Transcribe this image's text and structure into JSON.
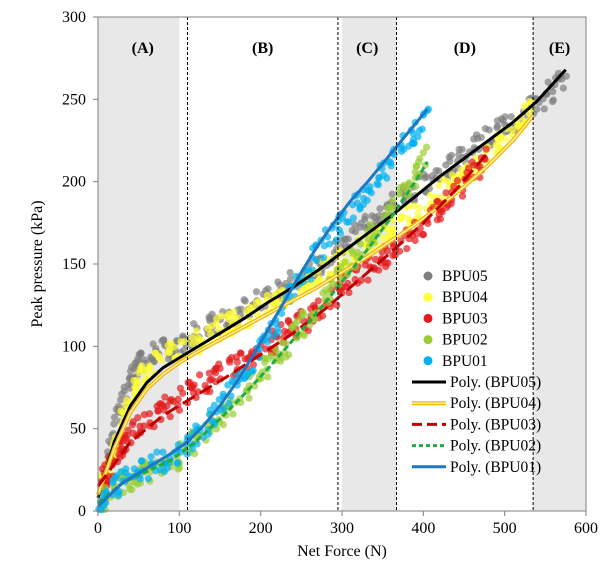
{
  "chart_data": {
    "type": "scatter",
    "xlabel": "Net Force (N)",
    "ylabel": "Peak pressure (kPa)",
    "xlim": [
      0,
      600
    ],
    "ylim": [
      0,
      300
    ],
    "x_ticks": [
      0,
      100,
      200,
      300,
      400,
      500,
      600
    ],
    "y_ticks": [
      0,
      50,
      100,
      150,
      200,
      250,
      300
    ],
    "grid": false,
    "legend_position": "right",
    "regions": [
      {
        "label": "(A)",
        "x_range": [
          0,
          110
        ],
        "shaded_x_range": [
          0,
          100
        ]
      },
      {
        "label": "(B)",
        "x_range": [
          110,
          295
        ]
      },
      {
        "label": "(C)",
        "x_range": [
          295,
          367
        ],
        "shaded_x_range": [
          300,
          367
        ]
      },
      {
        "label": "(D)",
        "x_range": [
          367,
          535
        ]
      },
      {
        "label": "(E)",
        "x_range": [
          535,
          600
        ],
        "shaded_x_range": [
          535,
          600
        ]
      }
    ],
    "divider_lines_x": [
      110,
      295,
      367,
      535
    ],
    "series": [
      {
        "name": "BPU05",
        "kind": "scatter",
        "color": "#7f7f7f",
        "points": [
          [
            5,
            12
          ],
          [
            10,
            25
          ],
          [
            20,
            50
          ],
          [
            30,
            68
          ],
          [
            40,
            80
          ],
          [
            50,
            88
          ],
          [
            60,
            93
          ],
          [
            75,
            97
          ],
          [
            90,
            99
          ],
          [
            105,
            101
          ],
          [
            120,
            107
          ],
          [
            140,
            112
          ],
          [
            160,
            117
          ],
          [
            180,
            122
          ],
          [
            200,
            128
          ],
          [
            220,
            133
          ],
          [
            240,
            139
          ],
          [
            260,
            145
          ],
          [
            280,
            152
          ],
          [
            300,
            160
          ],
          [
            320,
            168
          ],
          [
            340,
            176
          ],
          [
            360,
            184
          ],
          [
            380,
            192
          ],
          [
            400,
            200
          ],
          [
            420,
            206
          ],
          [
            440,
            213
          ],
          [
            460,
            220
          ],
          [
            480,
            227
          ],
          [
            500,
            234
          ],
          [
            520,
            240
          ],
          [
            540,
            247
          ],
          [
            560,
            256
          ],
          [
            575,
            265
          ]
        ]
      },
      {
        "name": "BPU04",
        "kind": "scatter",
        "color": "#ffff33",
        "points": [
          [
            5,
            15
          ],
          [
            10,
            22
          ],
          [
            20,
            40
          ],
          [
            30,
            55
          ],
          [
            40,
            68
          ],
          [
            50,
            78
          ],
          [
            60,
            85
          ],
          [
            80,
            93
          ],
          [
            100,
            98
          ],
          [
            120,
            102
          ],
          [
            140,
            108
          ],
          [
            160,
            113
          ],
          [
            180,
            118
          ],
          [
            200,
            123
          ],
          [
            220,
            128
          ],
          [
            240,
            134
          ],
          [
            260,
            140
          ],
          [
            280,
            146
          ],
          [
            300,
            152
          ],
          [
            320,
            158
          ],
          [
            340,
            165
          ],
          [
            360,
            171
          ],
          [
            380,
            178
          ],
          [
            400,
            185
          ],
          [
            420,
            192
          ],
          [
            440,
            200
          ],
          [
            460,
            208
          ],
          [
            480,
            217
          ],
          [
            500,
            226
          ],
          [
            520,
            236
          ],
          [
            535,
            246
          ]
        ]
      },
      {
        "name": "BPU03",
        "kind": "scatter",
        "color": "#e41a1c",
        "points": [
          [
            5,
            18
          ],
          [
            10,
            22
          ],
          [
            20,
            32
          ],
          [
            30,
            40
          ],
          [
            40,
            47
          ],
          [
            60,
            55
          ],
          [
            80,
            62
          ],
          [
            100,
            68
          ],
          [
            120,
            74
          ],
          [
            140,
            80
          ],
          [
            160,
            86
          ],
          [
            180,
            92
          ],
          [
            200,
            98
          ],
          [
            220,
            104
          ],
          [
            240,
            111
          ],
          [
            260,
            118
          ],
          [
            280,
            126
          ],
          [
            300,
            134
          ],
          [
            320,
            142
          ],
          [
            340,
            150
          ],
          [
            360,
            158
          ],
          [
            380,
            166
          ],
          [
            400,
            175
          ],
          [
            420,
            184
          ],
          [
            440,
            194
          ],
          [
            460,
            205
          ],
          [
            480,
            215
          ]
        ]
      },
      {
        "name": "BPU02",
        "kind": "scatter",
        "color": "#9acd32",
        "points": [
          [
            5,
            5
          ],
          [
            10,
            12
          ],
          [
            30,
            18
          ],
          [
            50,
            22
          ],
          [
            70,
            25
          ],
          [
            90,
            30
          ],
          [
            110,
            38
          ],
          [
            130,
            47
          ],
          [
            150,
            57
          ],
          [
            170,
            67
          ],
          [
            190,
            78
          ],
          [
            210,
            89
          ],
          [
            230,
            100
          ],
          [
            250,
            112
          ],
          [
            270,
            124
          ],
          [
            290,
            137
          ],
          [
            310,
            150
          ],
          [
            330,
            163
          ],
          [
            350,
            176
          ],
          [
            370,
            190
          ],
          [
            390,
            203
          ],
          [
            405,
            215
          ]
        ]
      },
      {
        "name": "BPU01",
        "kind": "scatter",
        "color": "#00b0f0",
        "points": [
          [
            2,
            3
          ],
          [
            10,
            10
          ],
          [
            30,
            18
          ],
          [
            50,
            23
          ],
          [
            70,
            28
          ],
          [
            90,
            33
          ],
          [
            110,
            40
          ],
          [
            130,
            50
          ],
          [
            150,
            62
          ],
          [
            170,
            76
          ],
          [
            190,
            92
          ],
          [
            210,
            108
          ],
          [
            230,
            124
          ],
          [
            250,
            140
          ],
          [
            270,
            156
          ],
          [
            290,
            170
          ],
          [
            310,
            182
          ],
          [
            330,
            194
          ],
          [
            350,
            206
          ],
          [
            370,
            218
          ],
          [
            390,
            230
          ],
          [
            405,
            240
          ]
        ]
      },
      {
        "name": "Poly. (BPU05)",
        "kind": "line",
        "color": "#000000",
        "dash": "solid",
        "x": [
          0,
          20,
          40,
          60,
          80,
          100,
          120,
          150,
          180,
          210,
          240,
          270,
          300,
          330,
          360,
          390,
          420,
          450,
          480,
          510,
          540,
          575
        ],
        "y": [
          8,
          42,
          64,
          78,
          87,
          93,
          99,
          108,
          117,
          127,
          136,
          146,
          157,
          168,
          179,
          191,
          203,
          214,
          225,
          236,
          249,
          268
        ]
      },
      {
        "name": "Poly. (BPU04)",
        "kind": "line",
        "color": "#f2b600",
        "dash": "double",
        "x": [
          0,
          20,
          40,
          60,
          80,
          100,
          120,
          150,
          180,
          210,
          240,
          270,
          300,
          330,
          360,
          390,
          420,
          450,
          480,
          510,
          535
        ],
        "y": [
          10,
          38,
          60,
          74,
          83,
          90,
          96,
          104,
          112,
          120,
          128,
          136,
          145,
          154,
          164,
          174,
          185,
          197,
          210,
          225,
          240
        ]
      },
      {
        "name": "Poly. (BPU03)",
        "kind": "line",
        "color": "#c00000",
        "dash": "dash",
        "x": [
          0,
          40,
          80,
          120,
          160,
          200,
          240,
          280,
          320,
          360,
          400,
          440,
          480
        ],
        "y": [
          15,
          42,
          58,
          70,
          82,
          95,
          108,
          123,
          140,
          157,
          175,
          195,
          218
        ]
      },
      {
        "name": "Poly. (BPU02)",
        "kind": "line",
        "color": "#22aa44",
        "dash": "dot",
        "x": [
          0,
          30,
          60,
          90,
          120,
          150,
          180,
          210,
          240,
          270,
          300,
          330,
          360,
          390,
          405
        ],
        "y": [
          5,
          17,
          24,
          31,
          42,
          56,
          71,
          87,
          104,
          121,
          139,
          158,
          178,
          200,
          212
        ]
      },
      {
        "name": "Poly. (BPU01)",
        "kind": "line",
        "color": "#1f77c4",
        "dash": "solid",
        "x": [
          0,
          30,
          60,
          90,
          110,
          130,
          150,
          170,
          190,
          210,
          230,
          250,
          270,
          290,
          310,
          330,
          350,
          370,
          390,
          405
        ],
        "y": [
          3,
          17,
          26,
          35,
          42,
          52,
          64,
          78,
          94,
          111,
          128,
          145,
          161,
          175,
          188,
          199,
          211,
          223,
          235,
          244
        ]
      }
    ]
  }
}
